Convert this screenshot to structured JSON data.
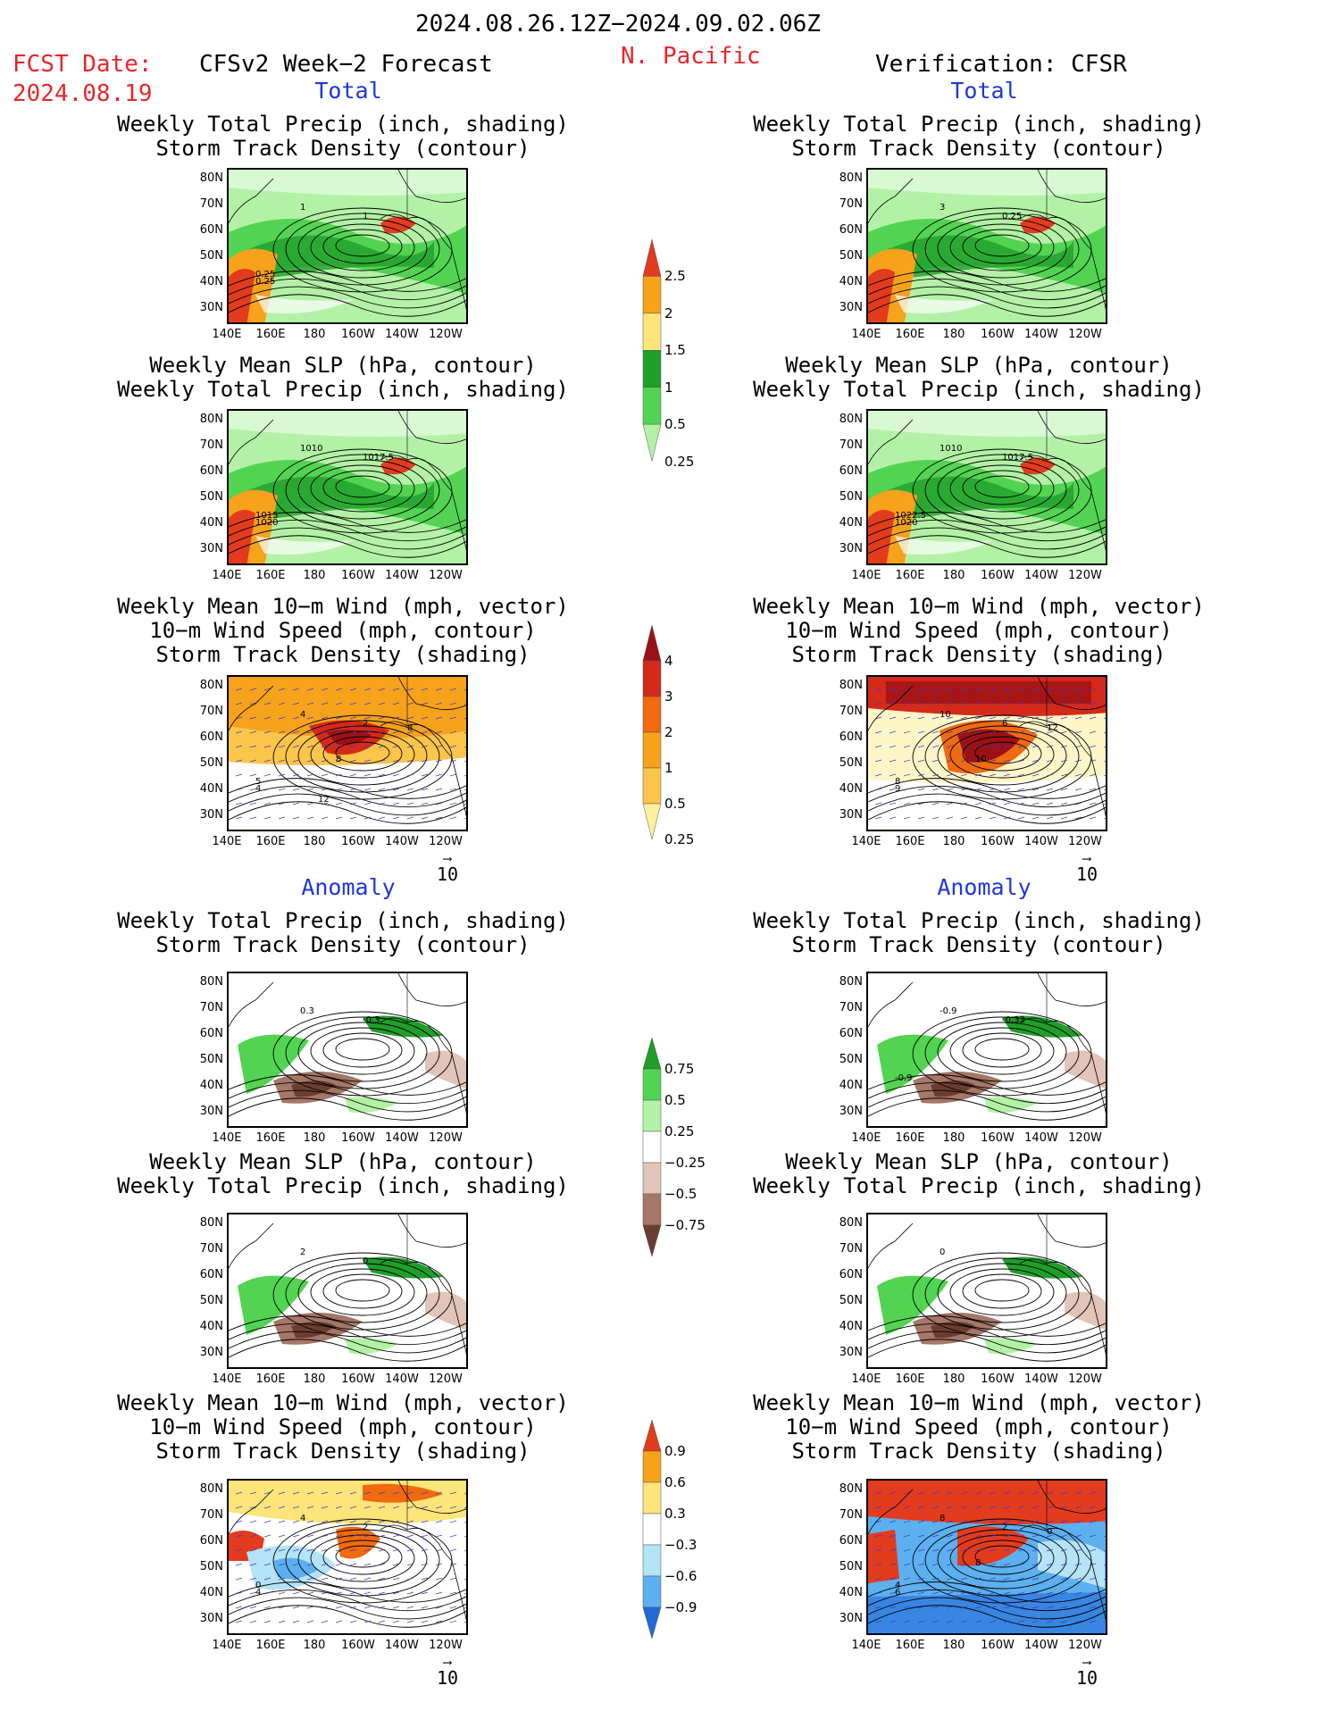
{
  "header": {
    "period": "2024.08.26.12Z−2024.09.02.06Z",
    "fcst_label": "FCST Date:",
    "fcst_date": "2024.08.19",
    "model": "CFSv2 Week−2 Forecast",
    "region": "N. Pacific",
    "verification": "Verification: CFSR"
  },
  "sections": {
    "total": "Total",
    "anomaly": "Anomaly"
  },
  "titles": {
    "precip_storm": [
      "Weekly Total Precip (inch, shading)",
      "Storm Track Density (contour)"
    ],
    "slp_precip": [
      "Weekly Mean SLP (hPa, contour)",
      "Weekly Total Precip (inch, shading)"
    ],
    "wind": [
      "Weekly Mean 10−m Wind (mph, vector)",
      "10−m Wind Speed (mph, contour)",
      "Storm Track Density (shading)"
    ]
  },
  "axes": {
    "lat_ticks": [
      "80N",
      "70N",
      "60N",
      "50N",
      "40N",
      "30N"
    ],
    "lon_ticks": [
      "140E",
      "160E",
      "180",
      "160W",
      "140W",
      "120W"
    ]
  },
  "vector_ref": "10",
  "panel_labels": {
    "f_total_precip": [
      "1",
      "1",
      "0.25",
      "0.25"
    ],
    "v_total_precip": [
      "3",
      "0.25"
    ],
    "f_total_slp": [
      "1010",
      "1017.5",
      "1015",
      "1020"
    ],
    "v_total_slp": [
      "1010",
      "1017.5",
      "1022.5",
      "1020"
    ],
    "f_total_wind": [
      "4",
      "2",
      "5",
      "4",
      "8",
      "8",
      "12"
    ],
    "v_total_wind": [
      "10",
      "6",
      "8",
      "9",
      "10",
      "12"
    ],
    "f_anom_precip": [
      "0.3",
      "-0.3"
    ],
    "v_anom_precip": [
      "-0.9",
      "-0.33",
      "-0.9"
    ],
    "f_anom_slp": [
      "2",
      "0"
    ],
    "v_anom_slp": [
      "0"
    ],
    "f_anom_wind": [
      "4",
      "2",
      "0",
      "4"
    ],
    "v_anom_wind": [
      "8",
      "2",
      "4",
      "6",
      "8",
      "0"
    ]
  },
  "colorbars": {
    "total_precip": {
      "labels": [
        "2.5",
        "2",
        "1.5",
        "1",
        "0.5",
        "0.25"
      ],
      "colors": [
        "#e33b1e",
        "#f7a21b",
        "#fde57a",
        "#1f9e2a",
        "#52d452",
        "#b3f2a6"
      ]
    },
    "total_storm": {
      "labels": [
        "4",
        "3",
        "2",
        "1",
        "0.5",
        "0.25"
      ],
      "colors": [
        "#9b1116",
        "#d42a1a",
        "#f06a10",
        "#f7a21b",
        "#fbc54a",
        "#fff0a0"
      ]
    },
    "anom_precip": {
      "labels": [
        "0.75",
        "0.5",
        "0.25",
        "−0.25",
        "−0.5",
        "−0.75"
      ],
      "colors": [
        "#1f9e2a",
        "#52d452",
        "#b3f2a6",
        "#ffffff",
        "#e2c4b8",
        "#a57767",
        "#6b3d30"
      ]
    },
    "anom_storm": {
      "labels": [
        "0.9",
        "0.6",
        "0.3",
        "−0.3",
        "−0.6",
        "−0.9"
      ],
      "colors": [
        "#e33b1e",
        "#f7a21b",
        "#fde57a",
        "#ffffff",
        "#b5e3f7",
        "#5cb0ef",
        "#1f6ad8"
      ]
    }
  },
  "colors": {
    "red": "#e8262b",
    "blue": "#1f35e0",
    "contour": "#000000",
    "vector": "#3a3ad0"
  }
}
